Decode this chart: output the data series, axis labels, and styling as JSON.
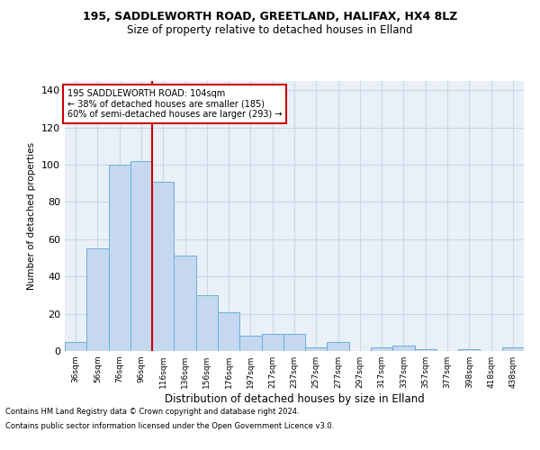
{
  "title1": "195, SADDLEWORTH ROAD, GREETLAND, HALIFAX, HX4 8LZ",
  "title2": "Size of property relative to detached houses in Elland",
  "xlabel": "Distribution of detached houses by size in Elland",
  "ylabel": "Number of detached properties",
  "footnote1": "Contains HM Land Registry data © Crown copyright and database right 2024.",
  "footnote2": "Contains public sector information licensed under the Open Government Licence v3.0.",
  "bar_labels": [
    "36sqm",
    "56sqm",
    "76sqm",
    "96sqm",
    "116sqm",
    "136sqm",
    "156sqm",
    "176sqm",
    "197sqm",
    "217sqm",
    "237sqm",
    "257sqm",
    "277sqm",
    "297sqm",
    "317sqm",
    "337sqm",
    "357sqm",
    "377sqm",
    "398sqm",
    "418sqm",
    "438sqm"
  ],
  "bar_values": [
    5,
    55,
    100,
    102,
    91,
    51,
    30,
    21,
    8,
    9,
    9,
    2,
    5,
    0,
    2,
    3,
    1,
    0,
    1,
    0,
    2
  ],
  "bar_color": "#c5d8f0",
  "bar_edge_color": "#6aaed6",
  "vline_x": 3.5,
  "vline_color": "#cc0000",
  "annotation_text": "195 SADDLEWORTH ROAD: 104sqm\n← 38% of detached houses are smaller (185)\n60% of semi-detached houses are larger (293) →",
  "annotation_box_color": "#ffffff",
  "annotation_box_edge": "#cc0000",
  "ylim": [
    0,
    145
  ],
  "yticks": [
    0,
    20,
    40,
    60,
    80,
    100,
    120,
    140
  ],
  "grid_color": "#c8d8e8",
  "bg_color": "#eaf0f8"
}
